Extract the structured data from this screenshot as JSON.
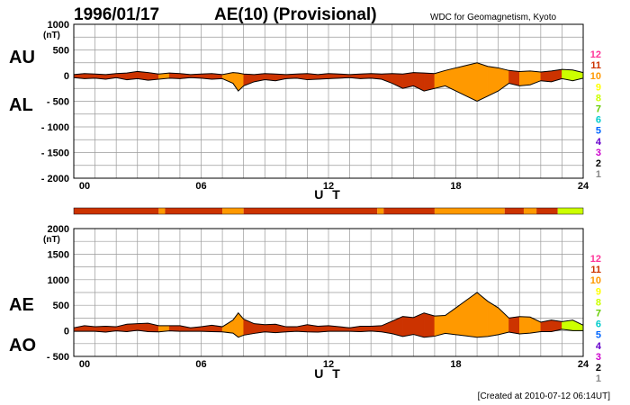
{
  "header": {
    "date": "1996/01/17",
    "title": "AE(10) (Provisional)",
    "organization": "WDC for Geomagnetism, Kyoto"
  },
  "footer": {
    "created": "[Created at 2010-07-12 06:14UT]"
  },
  "colors": {
    "activity_scale": [
      "#cccccc",
      "#888888",
      "#000000",
      "#cc00cc",
      "#6600cc",
      "#0066ff",
      "#00cccc",
      "#66cc00",
      "#ccff00",
      "#ffff00",
      "#ff9900",
      "#cc3300",
      "#ff3399"
    ],
    "trace": "#000000",
    "grid": "#9a9a9a"
  },
  "activity_scale_labels": [
    "12",
    "11",
    "10",
    "9",
    "8",
    "7",
    "6",
    "5",
    "4",
    "3",
    "2",
    "1"
  ],
  "chart_data": [
    {
      "type": "area",
      "panel": "AU/AL",
      "series_labels": [
        "AU",
        "AL"
      ],
      "unit": "(nT)",
      "xlabel": "U T",
      "xlim": [
        0,
        24
      ],
      "xticks": [
        "00",
        "06",
        "12",
        "18",
        "24"
      ],
      "ylim": [
        -2000,
        1000
      ],
      "yticks": [
        "1000",
        "500",
        "0",
        "- 500",
        "- 1000",
        "- 1500",
        "- 2000"
      ],
      "x": [
        0,
        0.5,
        1,
        1.5,
        2,
        2.5,
        3,
        3.5,
        4,
        4.5,
        5,
        5.5,
        6,
        6.5,
        7,
        7.5,
        7.75,
        8,
        8.5,
        9,
        9.5,
        10,
        10.5,
        11,
        11.5,
        12,
        12.5,
        13,
        13.5,
        14,
        14.5,
        15,
        15.5,
        16,
        16.5,
        17,
        17.5,
        18,
        18.5,
        19,
        19.5,
        20,
        20.5,
        21,
        21.5,
        22,
        22.5,
        23,
        23.5,
        24
      ],
      "au": [
        20,
        40,
        30,
        20,
        40,
        50,
        80,
        60,
        30,
        50,
        40,
        20,
        30,
        40,
        20,
        60,
        50,
        30,
        20,
        40,
        30,
        20,
        30,
        40,
        20,
        40,
        30,
        20,
        30,
        40,
        30,
        40,
        30,
        60,
        50,
        40,
        100,
        150,
        200,
        250,
        180,
        150,
        100,
        80,
        90,
        70,
        90,
        120,
        110,
        60
      ],
      "al": [
        -40,
        -60,
        -50,
        -70,
        -40,
        -80,
        -60,
        -90,
        -70,
        -50,
        -60,
        -40,
        -50,
        -70,
        -60,
        -150,
        -300,
        -200,
        -120,
        -80,
        -100,
        -60,
        -50,
        -80,
        -70,
        -60,
        -50,
        -40,
        -60,
        -50,
        -70,
        -150,
        -250,
        -200,
        -300,
        -250,
        -200,
        -300,
        -400,
        -500,
        -400,
        -300,
        -150,
        -200,
        -180,
        -100,
        -120,
        -60,
        -100,
        -50
      ]
    },
    {
      "type": "area",
      "panel": "AE/AO",
      "series_labels": [
        "AE",
        "AO"
      ],
      "unit": "(nT)",
      "xlabel": "U T",
      "xlim": [
        0,
        24
      ],
      "xticks": [
        "00",
        "06",
        "12",
        "18",
        "24"
      ],
      "ylim": [
        -500,
        2000
      ],
      "yticks": [
        "2000",
        "1500",
        "1000",
        "500",
        "0",
        "- 500"
      ],
      "x": [
        0,
        0.5,
        1,
        1.5,
        2,
        2.5,
        3,
        3.5,
        4,
        4.5,
        5,
        5.5,
        6,
        6.5,
        7,
        7.5,
        7.75,
        8,
        8.5,
        9,
        9.5,
        10,
        10.5,
        11,
        11.5,
        12,
        12.5,
        13,
        13.5,
        14,
        14.5,
        15,
        15.5,
        16,
        16.5,
        17,
        17.5,
        18,
        18.5,
        19,
        19.5,
        20,
        20.5,
        21,
        21.5,
        22,
        22.5,
        23,
        23.5,
        24
      ],
      "ae": [
        60,
        100,
        80,
        90,
        80,
        130,
        140,
        150,
        100,
        100,
        100,
        60,
        80,
        110,
        80,
        210,
        350,
        230,
        140,
        120,
        130,
        80,
        80,
        120,
        90,
        100,
        80,
        60,
        90,
        90,
        100,
        190,
        280,
        260,
        350,
        290,
        300,
        450,
        600,
        750,
        580,
        450,
        250,
        280,
        270,
        170,
        210,
        180,
        210,
        110
      ],
      "ao": [
        -10,
        -10,
        -10,
        -25,
        0,
        -15,
        10,
        -15,
        -20,
        0,
        -10,
        -10,
        -10,
        -15,
        -20,
        -45,
        -125,
        -85,
        -50,
        -20,
        -35,
        -20,
        -10,
        -20,
        -25,
        -10,
        -10,
        -10,
        -15,
        -5,
        -20,
        -55,
        -110,
        -70,
        -125,
        -105,
        -50,
        -75,
        -100,
        -125,
        -110,
        -75,
        -25,
        -60,
        -45,
        -15,
        -15,
        30,
        5,
        5
      ]
    }
  ],
  "activity_bar": {
    "segments": [
      {
        "from": 0,
        "to": 4.0,
        "level": 11
      },
      {
        "from": 4.0,
        "to": 4.3,
        "level": 10
      },
      {
        "from": 4.3,
        "to": 7.0,
        "level": 11
      },
      {
        "from": 7.0,
        "to": 8.0,
        "level": 10
      },
      {
        "from": 8.0,
        "to": 14.3,
        "level": 11
      },
      {
        "from": 14.3,
        "to": 14.6,
        "level": 10
      },
      {
        "from": 14.6,
        "to": 17.0,
        "level": 11
      },
      {
        "from": 17.0,
        "to": 20.3,
        "level": 10
      },
      {
        "from": 20.3,
        "to": 21.2,
        "level": 11
      },
      {
        "from": 21.2,
        "to": 21.8,
        "level": 10
      },
      {
        "from": 21.8,
        "to": 22.8,
        "level": 11
      },
      {
        "from": 22.8,
        "to": 24.0,
        "level": 8
      }
    ]
  }
}
